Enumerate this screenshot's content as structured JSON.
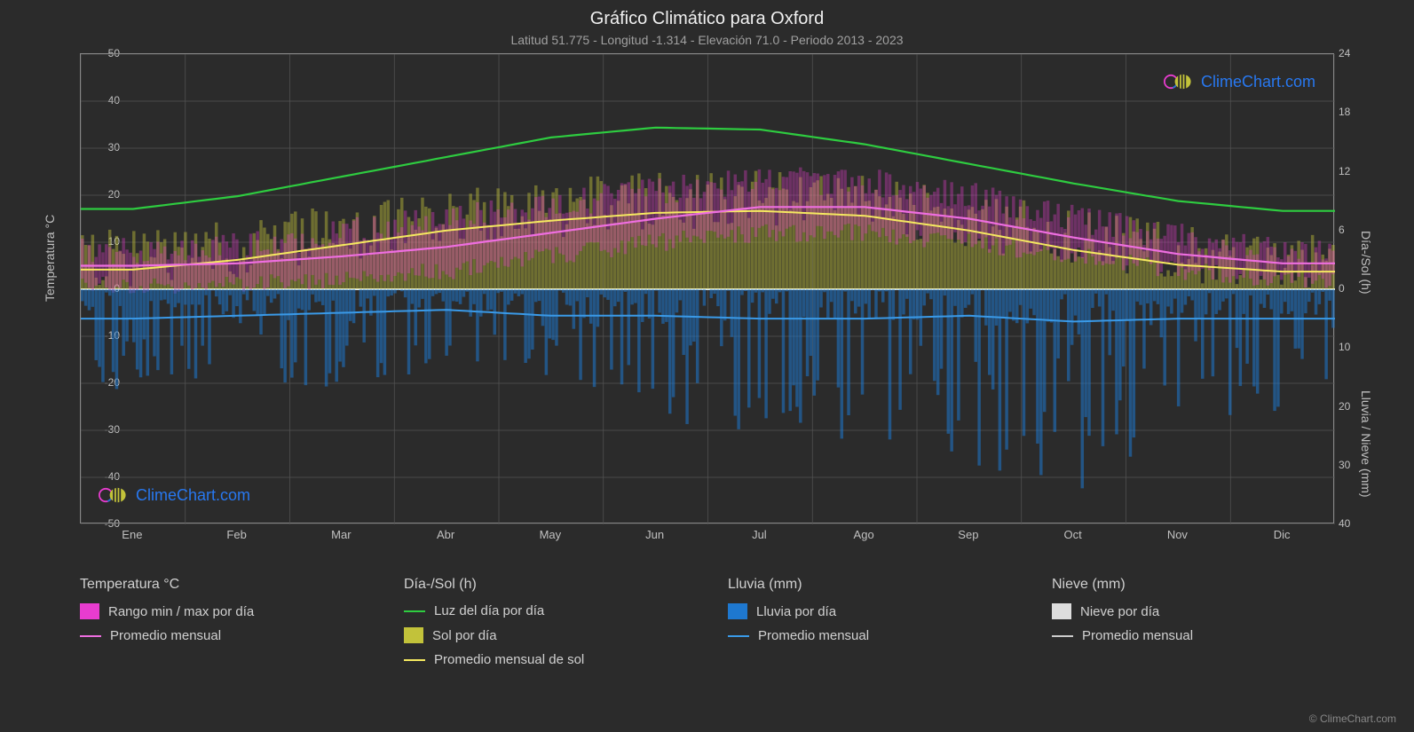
{
  "title": "Gráfico Climático para Oxford",
  "subtitle": "Latitud 51.775 - Longitud -1.314 - Elevación 71.0 - Periodo 2013 - 2023",
  "brand": "ClimeChart.com",
  "copyright": "© ClimeChart.com",
  "axis": {
    "left_label": "Temperatura °C",
    "right_label_top": "Día-/Sol (h)",
    "right_label_bottom": "Lluvia / Nieve (mm)",
    "left_ticks": [
      50,
      40,
      30,
      20,
      10,
      0,
      -10,
      -20,
      -30,
      -40,
      -50
    ],
    "right_ticks_top": [
      24,
      18,
      12,
      6,
      0
    ],
    "right_ticks_bottom": [
      0,
      10,
      20,
      30,
      40
    ],
    "x_ticks": [
      "Ene",
      "Feb",
      "Mar",
      "Abr",
      "May",
      "Jun",
      "Jul",
      "Ago",
      "Sep",
      "Oct",
      "Nov",
      "Dic"
    ]
  },
  "colors": {
    "bg": "#2b2b2b",
    "grid": "#555555",
    "border": "#888888",
    "zero_line": "#ffffff",
    "temp_range": "#e83ccf",
    "temp_avg": "#ee6ee0",
    "daylight": "#2ecc40",
    "sun_bars": "#c2c23a",
    "sun_avg": "#f5e960",
    "rain_bars": "#1e78d0",
    "rain_avg": "#3a9ae8",
    "snow_bars": "#dddddd",
    "snow_avg": "#cccccc",
    "brand_blue": "#2878f0"
  },
  "series": {
    "daylight_h": [
      8.2,
      9.5,
      11.5,
      13.5,
      15.5,
      16.5,
      16.3,
      14.8,
      12.8,
      10.8,
      9.0,
      8.0
    ],
    "sun_avg_h": [
      2.0,
      3.0,
      4.5,
      6.0,
      7.0,
      7.8,
      8.0,
      7.5,
      6.0,
      4.0,
      2.5,
      1.8
    ],
    "temp_avg_c": [
      5,
      5.5,
      7,
      9,
      12,
      15,
      17.5,
      17.5,
      15,
      11,
      7.5,
      5.5
    ],
    "temp_min_c": [
      1,
      1,
      2,
      4,
      7,
      10,
      12,
      12,
      10,
      7,
      4,
      2
    ],
    "temp_max_c": [
      8,
      9,
      12,
      15,
      18,
      21,
      23,
      23,
      20,
      15,
      11,
      8
    ],
    "rain_avg_mm": [
      5,
      4.5,
      4,
      3.5,
      4.5,
      4.5,
      5,
      5,
      4.5,
      5.5,
      5,
      5
    ],
    "rain_daily_max_mm": [
      18,
      15,
      20,
      12,
      16,
      22,
      28,
      25,
      30,
      35,
      25,
      22
    ]
  },
  "legend": {
    "temp": {
      "title": "Temperatura °C",
      "range": "Rango min / max por día",
      "avg": "Promedio mensual"
    },
    "daysun": {
      "title": "Día-/Sol (h)",
      "daylight": "Luz del día por día",
      "sun": "Sol por día",
      "sun_avg": "Promedio mensual de sol"
    },
    "rain": {
      "title": "Lluvia (mm)",
      "daily": "Lluvia por día",
      "avg": "Promedio mensual"
    },
    "snow": {
      "title": "Nieve (mm)",
      "daily": "Nieve por día",
      "avg": "Promedio mensual"
    }
  }
}
